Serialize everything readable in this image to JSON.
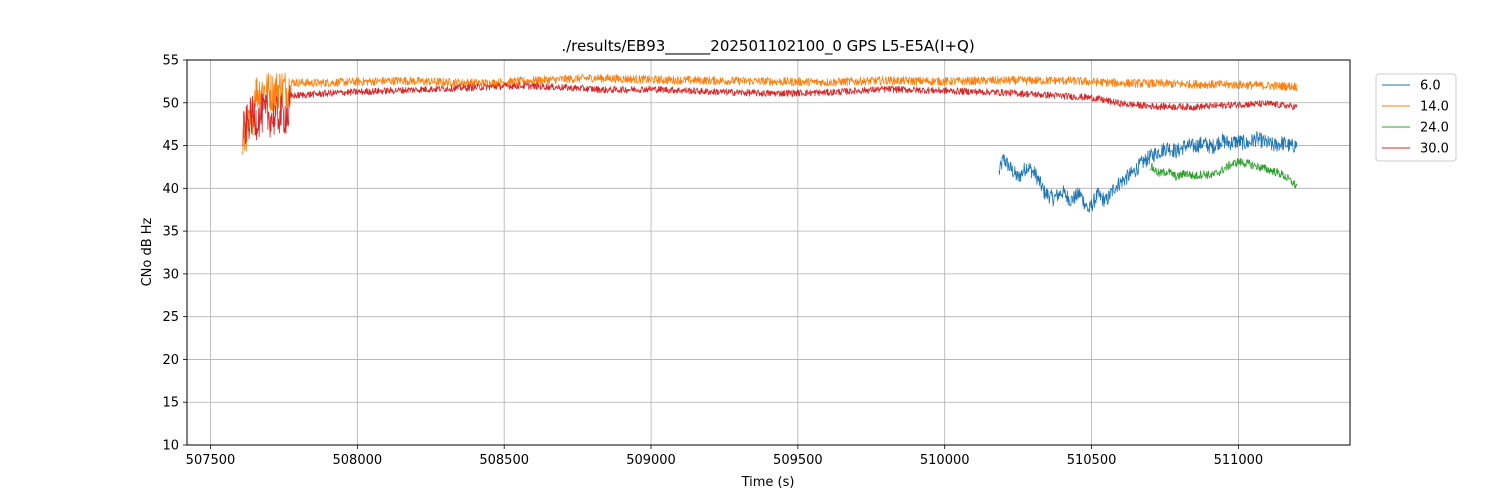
{
  "chart_data": {
    "type": "line",
    "title": "./results/EB93______202501102100_0 GPS L5-E5A(I+Q)",
    "xlabel": "Time (s)",
    "ylabel": "CNo dB Hz",
    "xlim": [
      507420,
      511380
    ],
    "ylim": [
      10,
      55
    ],
    "x_ticks": [
      507500,
      508000,
      508500,
      509000,
      509500,
      510000,
      510500,
      511000
    ],
    "y_ticks": [
      10,
      15,
      20,
      25,
      30,
      35,
      40,
      45,
      50,
      55
    ],
    "grid": true,
    "legend_position": "outside-top-right",
    "series": [
      {
        "name": "6.0",
        "color": "#1f77b4",
        "points": [
          [
            510185,
            41.8
          ],
          [
            510200,
            43.5
          ],
          [
            510220,
            42.5
          ],
          [
            510250,
            41.2
          ],
          [
            510280,
            42.6
          ],
          [
            510310,
            41.6
          ],
          [
            510340,
            39.5
          ],
          [
            510370,
            38.8
          ],
          [
            510400,
            39.6
          ],
          [
            510430,
            38.6
          ],
          [
            510460,
            39.4
          ],
          [
            510490,
            37.4
          ],
          [
            510520,
            39.2
          ],
          [
            510550,
            38.5
          ],
          [
            510580,
            40.2
          ],
          [
            510610,
            41.0
          ],
          [
            510640,
            41.8
          ],
          [
            510670,
            42.9
          ],
          [
            510700,
            43.7
          ],
          [
            510730,
            44.3
          ],
          [
            510760,
            44.8
          ],
          [
            510790,
            44.3
          ],
          [
            510820,
            45.0
          ],
          [
            510850,
            44.9
          ],
          [
            510880,
            45.3
          ],
          [
            510910,
            44.8
          ],
          [
            510940,
            45.6
          ],
          [
            510970,
            45.3
          ],
          [
            511000,
            45.5
          ],
          [
            511030,
            45.2
          ],
          [
            511060,
            45.8
          ],
          [
            511090,
            45.4
          ],
          [
            511120,
            45.0
          ],
          [
            511150,
            45.3
          ],
          [
            511180,
            44.9
          ],
          [
            511200,
            45.1
          ]
        ],
        "noise": 0.9
      },
      {
        "name": "14.0",
        "color": "#ff7f0e",
        "points": [
          [
            507610,
            45.0
          ],
          [
            507625,
            47.0
          ],
          [
            507640,
            47.5
          ],
          [
            507650,
            51.2
          ],
          [
            507680,
            51.6
          ],
          [
            507710,
            51.2
          ],
          [
            507740,
            51.8
          ],
          [
            507765,
            51.5
          ],
          [
            507775,
            52.4
          ],
          [
            507850,
            52.3
          ],
          [
            507950,
            52.4
          ],
          [
            508050,
            52.5
          ],
          [
            508150,
            52.6
          ],
          [
            508300,
            52.4
          ],
          [
            508450,
            52.3
          ],
          [
            508600,
            52.6
          ],
          [
            508800,
            52.9
          ],
          [
            509000,
            52.7
          ],
          [
            509200,
            52.6
          ],
          [
            509400,
            52.5
          ],
          [
            509600,
            52.4
          ],
          [
            509800,
            52.6
          ],
          [
            510000,
            52.5
          ],
          [
            510200,
            52.6
          ],
          [
            510400,
            52.6
          ],
          [
            510600,
            52.3
          ],
          [
            510800,
            52.2
          ],
          [
            511000,
            52.1
          ],
          [
            511200,
            51.9
          ]
        ],
        "noise": 0.5
      },
      {
        "name": "24.0",
        "color": "#2ca02c",
        "points": [
          [
            510700,
            42.6
          ],
          [
            510730,
            41.7
          ],
          [
            510760,
            42.0
          ],
          [
            510790,
            41.3
          ],
          [
            510820,
            41.8
          ],
          [
            510850,
            41.4
          ],
          [
            510880,
            41.7
          ],
          [
            510910,
            41.5
          ],
          [
            510940,
            42.0
          ],
          [
            510970,
            42.7
          ],
          [
            511000,
            43.1
          ],
          [
            511030,
            42.9
          ],
          [
            511060,
            42.6
          ],
          [
            511090,
            42.3
          ],
          [
            511120,
            42.0
          ],
          [
            511150,
            41.6
          ],
          [
            511180,
            40.8
          ],
          [
            511200,
            40.2
          ]
        ],
        "noise": 0.5
      },
      {
        "name": "30.0",
        "color": "#d62728",
        "points": [
          [
            507610,
            46.5
          ],
          [
            507625,
            47.5
          ],
          [
            507640,
            48.5
          ],
          [
            507655,
            48.0
          ],
          [
            507680,
            48.8
          ],
          [
            507710,
            48.2
          ],
          [
            507740,
            48.7
          ],
          [
            507765,
            48.5
          ],
          [
            507775,
            50.8
          ],
          [
            507850,
            51.0
          ],
          [
            507950,
            51.2
          ],
          [
            508100,
            51.4
          ],
          [
            508250,
            51.6
          ],
          [
            508400,
            51.8
          ],
          [
            508550,
            52.0
          ],
          [
            508700,
            51.8
          ],
          [
            508850,
            51.5
          ],
          [
            509000,
            51.6
          ],
          [
            509200,
            51.3
          ],
          [
            509400,
            51.1
          ],
          [
            509600,
            51.2
          ],
          [
            509800,
            51.6
          ],
          [
            510000,
            51.4
          ],
          [
            510200,
            51.2
          ],
          [
            510400,
            50.8
          ],
          [
            510500,
            50.6
          ],
          [
            510600,
            49.9
          ],
          [
            510700,
            49.6
          ],
          [
            510850,
            49.5
          ],
          [
            511000,
            49.8
          ],
          [
            511100,
            49.9
          ],
          [
            511200,
            49.5
          ]
        ],
        "noise": 0.4
      }
    ]
  }
}
